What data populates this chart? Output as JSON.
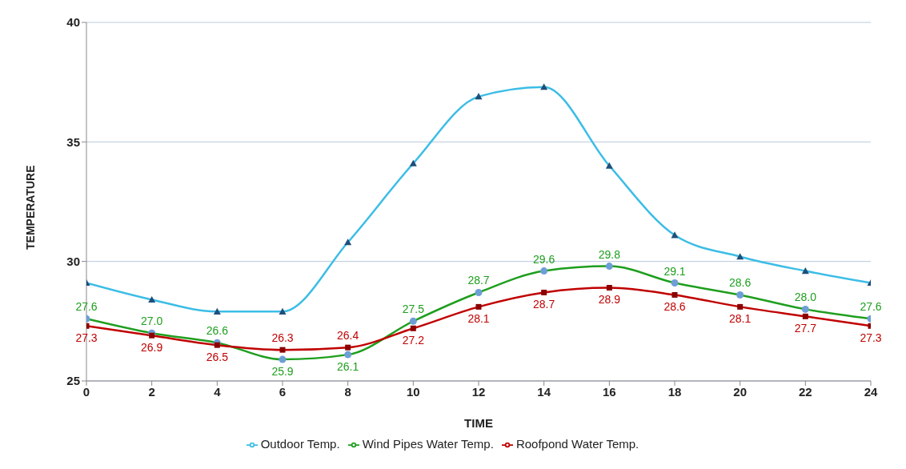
{
  "chart_data": {
    "type": "line",
    "xlabel": "TIME",
    "ylabel": "TEMPERATURE",
    "x": [
      0,
      2,
      4,
      6,
      8,
      10,
      12,
      14,
      16,
      18,
      20,
      22,
      24
    ],
    "series": [
      {
        "name": "Outdoor Temp.",
        "color": "#3cbde6",
        "marker": "triangle",
        "values": [
          29.1,
          28.4,
          27.9,
          27.9,
          30.8,
          34.1,
          36.9,
          37.3,
          34.0,
          31.1,
          30.2,
          29.6,
          29.1
        ]
      },
      {
        "name": "Wind Pipes Water Temp.",
        "color": "#1e9e1e",
        "marker": "circle",
        "values": [
          27.6,
          27.0,
          26.6,
          25.9,
          26.1,
          27.5,
          28.7,
          29.6,
          29.8,
          29.1,
          28.6,
          28.0,
          27.6
        ],
        "value_labels": [
          "27.6",
          "27.0",
          "26.6",
          "25.9",
          "26.1",
          "27.5",
          "28.7",
          "29.6",
          "29.8",
          "29.1",
          "28.6",
          "28.0",
          "27.6"
        ]
      },
      {
        "name": "Roofpond Water Temp.",
        "color": "#c00000",
        "marker": "square",
        "values": [
          27.3,
          26.9,
          26.5,
          26.3,
          26.4,
          27.2,
          28.1,
          28.7,
          28.9,
          28.6,
          28.1,
          27.7,
          27.3
        ],
        "value_labels": [
          "27.3",
          "26.9",
          "26.5",
          "26.3",
          "26.4",
          "27.2",
          "28.1",
          "28.7",
          "28.9",
          "28.6",
          "28.1",
          "27.7",
          "27.3"
        ]
      }
    ],
    "xlim": [
      0,
      24
    ],
    "xticks": [
      0,
      2,
      4,
      6,
      8,
      10,
      12,
      14,
      16,
      18,
      20,
      22,
      24
    ],
    "ylim": [
      25,
      40
    ],
    "yticks": [
      25,
      30,
      35,
      40
    ],
    "grid": "y",
    "legend": "bottom",
    "line_style": "solid"
  }
}
